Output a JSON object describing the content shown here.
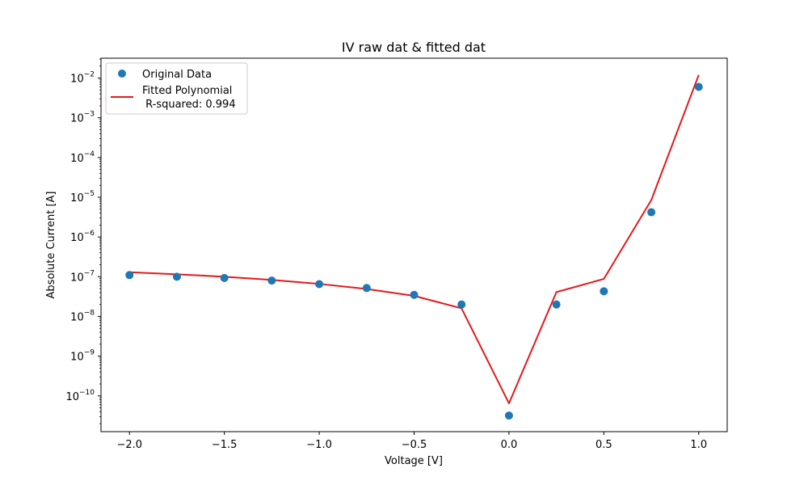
{
  "chart_data": {
    "type": "scatter",
    "title": "IV raw dat & fitted dat",
    "xlabel": "Voltage [V]",
    "ylabel": "Absolute Current [A]",
    "xlim": [
      -2.15,
      1.15
    ],
    "ylim_log10": [
      -10.9,
      -1.5
    ],
    "yscale": "log",
    "grid": false,
    "legend_placement": "top-left",
    "x_ticks": [
      {
        "value": -2.0,
        "label": "−2.0"
      },
      {
        "value": -1.5,
        "label": "−1.5"
      },
      {
        "value": -1.0,
        "label": "−1.0"
      },
      {
        "value": -0.5,
        "label": "−0.5"
      },
      {
        "value": 0.0,
        "label": "0.0"
      },
      {
        "value": 0.5,
        "label": "0.5"
      },
      {
        "value": 1.0,
        "label": "1.0"
      }
    ],
    "y_ticks": [
      {
        "exp": -10,
        "base": "10",
        "sup": "−10"
      },
      {
        "exp": -9,
        "base": "10",
        "sup": "−9"
      },
      {
        "exp": -8,
        "base": "10",
        "sup": "−8"
      },
      {
        "exp": -7,
        "base": "10",
        "sup": "−7"
      },
      {
        "exp": -6,
        "base": "10",
        "sup": "−6"
      },
      {
        "exp": -5,
        "base": "10",
        "sup": "−5"
      },
      {
        "exp": -4,
        "base": "10",
        "sup": "−4"
      },
      {
        "exp": -3,
        "base": "10",
        "sup": "−3"
      },
      {
        "exp": -2,
        "base": "10",
        "sup": "−2"
      }
    ],
    "series": [
      {
        "name": "Original Data",
        "kind": "scatter",
        "color": "#1f77b4",
        "x": [
          -2.0,
          -1.75,
          -1.5,
          -1.25,
          -1.0,
          -0.75,
          -0.5,
          -0.25,
          0.0,
          0.25,
          0.5,
          0.75,
          1.0
        ],
        "y": [
          1.1e-07,
          1e-07,
          9.3e-08,
          8e-08,
          6.5e-08,
          5.2e-08,
          3.5e-08,
          2e-08,
          3.2e-11,
          2e-08,
          4.3e-08,
          4.2e-06,
          0.006
        ]
      },
      {
        "name": "Fitted Polynomial",
        "name_line2": " R-squared: 0.994",
        "kind": "line",
        "color": "#e31a1c",
        "x": [
          -2.0,
          -1.75,
          -1.5,
          -1.25,
          -1.0,
          -0.75,
          -0.5,
          -0.25,
          0.0,
          0.25,
          0.5,
          0.75,
          1.0
        ],
        "y": [
          1.3e-07,
          1.15e-07,
          1e-07,
          8.3e-08,
          6.6e-08,
          4.9e-08,
          3.3e-08,
          1.6e-08,
          6.5e-11,
          4.1e-08,
          8.8e-08,
          8.5e-06,
          0.012
        ]
      }
    ]
  }
}
